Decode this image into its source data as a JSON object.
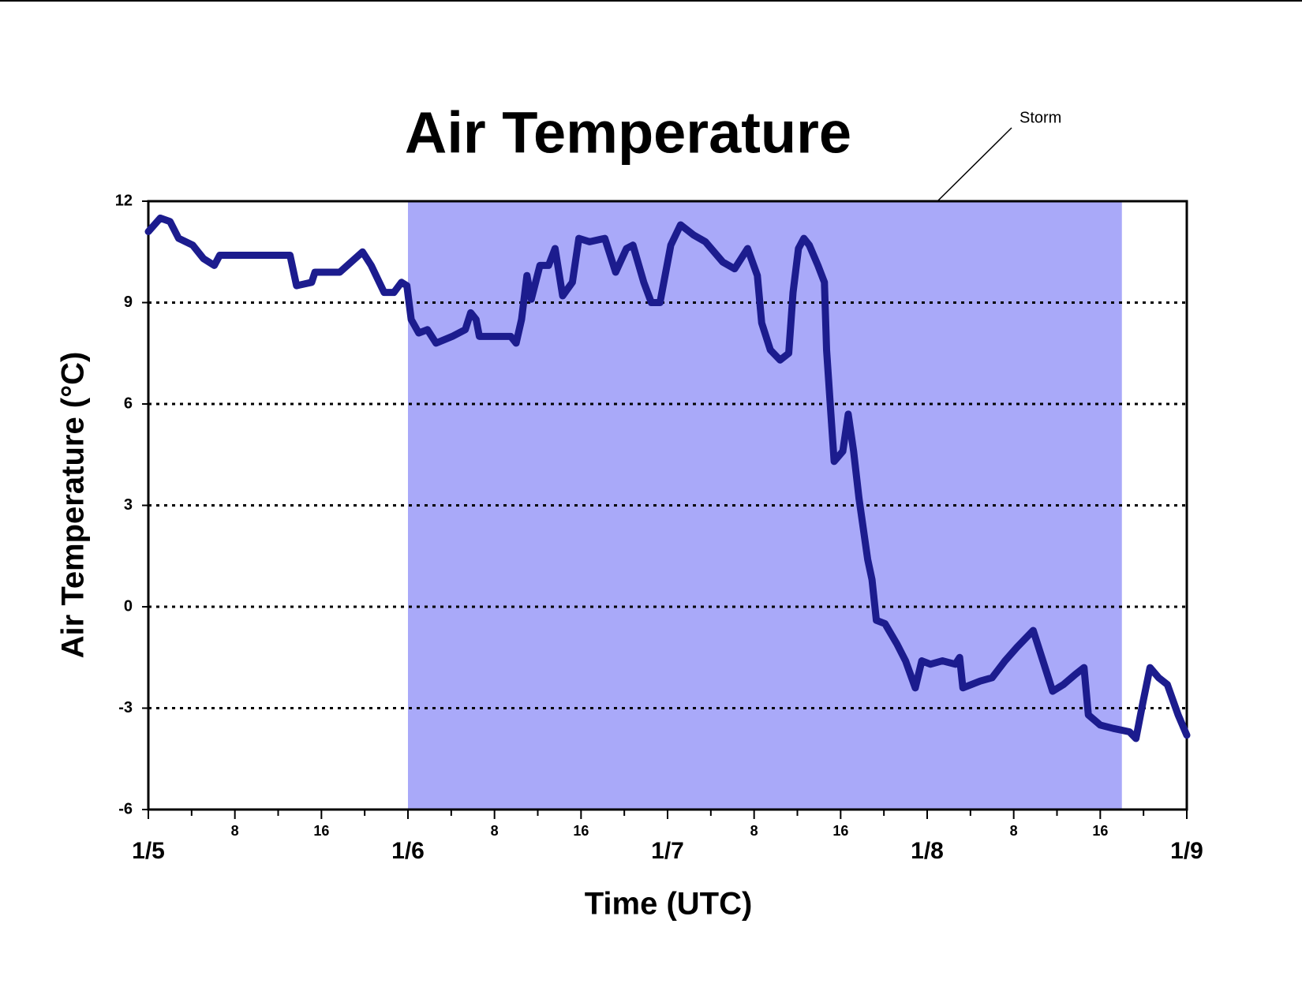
{
  "chart_data": {
    "type": "line",
    "title": "Air Temperature",
    "x_label": "Time (UTC)",
    "y_label": "Air Temperature (°C)",
    "series": [
      {
        "color": "#1c1c8e",
        "x": [
          0,
          1.1,
          2.0,
          2.8,
          4.1,
          5.1,
          6.1,
          6.6,
          9.3,
          13.1,
          13.7,
          15.1,
          15.4,
          17.7,
          18.4,
          19.8,
          20.6,
          21.8,
          22.7,
          23.4,
          23.9,
          24.3,
          25.0,
          25.8,
          26.6,
          28.1,
          29.3,
          29.8,
          30.3,
          30.6,
          33.5,
          34.0,
          34.5,
          35.0,
          35.4,
          36.2,
          37.0,
          37.6,
          38.3,
          39.2,
          39.8,
          40.8,
          42.2,
          43.2,
          44.2,
          44.8,
          45.8,
          46.5,
          47.3,
          48.3,
          49.2,
          50.4,
          51.5,
          53.1,
          54.2,
          55.4,
          56.3,
          56.7,
          57.5,
          58.4,
          59.2,
          59.6,
          60.1,
          60.6,
          61.1,
          61.9,
          62.5,
          62.7,
          63.1,
          63.4,
          64.2,
          64.7,
          65.2,
          65.7,
          66.5,
          66.9,
          67.3,
          68.1,
          69.2,
          70.0,
          70.9,
          71.5,
          72.3,
          73.4,
          74.6,
          75.0,
          75.3,
          76.9,
          78.0,
          79.2,
          80.3,
          81.8,
          82.6,
          83.6,
          84.6,
          85.7,
          86.5,
          86.9,
          88.0,
          89.2,
          90.7,
          91.3,
          91.9,
          92.6,
          93.4,
          94.2,
          95.2,
          96.0
        ],
        "values": [
          11.1,
          11.5,
          11.4,
          10.9,
          10.7,
          10.3,
          10.1,
          10.4,
          10.4,
          10.4,
          9.5,
          9.6,
          9.9,
          9.9,
          10.1,
          10.5,
          10.1,
          9.3,
          9.3,
          9.6,
          9.5,
          8.5,
          8.1,
          8.2,
          7.8,
          8.0,
          8.2,
          8.7,
          8.5,
          8.0,
          8.0,
          7.8,
          8.5,
          9.8,
          9.1,
          10.1,
          10.1,
          10.6,
          9.2,
          9.6,
          10.9,
          10.8,
          10.9,
          9.9,
          10.6,
          10.7,
          9.6,
          9.0,
          9.0,
          10.7,
          11.3,
          11.0,
          10.8,
          10.2,
          10.0,
          10.6,
          9.8,
          8.4,
          7.6,
          7.3,
          7.5,
          9.3,
          10.6,
          10.9,
          10.7,
          10.1,
          9.6,
          7.6,
          5.7,
          4.3,
          4.6,
          5.7,
          4.6,
          3.2,
          1.4,
          0.8,
          -0.4,
          -0.5,
          -1.1,
          -1.6,
          -2.4,
          -1.6,
          -1.7,
          -1.6,
          -1.7,
          -1.5,
          -2.4,
          -2.2,
          -2.1,
          -1.6,
          -1.2,
          -0.7,
          -1.5,
          -2.5,
          -2.3,
          -2.0,
          -1.8,
          -3.2,
          -3.5,
          -3.6,
          -3.7,
          -3.9,
          -2.9,
          -1.8,
          -2.1,
          -2.3,
          -3.2,
          -3.8
        ]
      }
    ],
    "shading": {
      "label": "Storm",
      "x": [
        24,
        90
      ],
      "color": "#a9a9f9"
    },
    "xlim": [
      0,
      96
    ],
    "xticks": [
      {
        "value": 0,
        "label": "1/5"
      },
      8,
      16,
      {
        "value": 24,
        "label": "1/6"
      },
      {
        "value": 32,
        "label": "8"
      },
      {
        "value": 40,
        "label": "16"
      },
      {
        "value": 48,
        "label": "1/7"
      },
      {
        "value": 56,
        "label": "8"
      },
      {
        "value": 64,
        "label": "16"
      },
      {
        "value": 72,
        "label": "1/8"
      },
      {
        "value": 80,
        "label": "8"
      },
      {
        "value": 88,
        "label": "16"
      },
      {
        "value": 96,
        "label": "1/9"
      }
    ],
    "xminor_ticks": [
      4,
      12,
      20,
      28,
      36,
      44,
      52,
      60,
      68,
      76,
      84,
      92
    ],
    "ylim": [
      -6,
      12
    ],
    "yticks": [
      -6,
      -3,
      0,
      3,
      6,
      9,
      12
    ],
    "grid": true
  }
}
